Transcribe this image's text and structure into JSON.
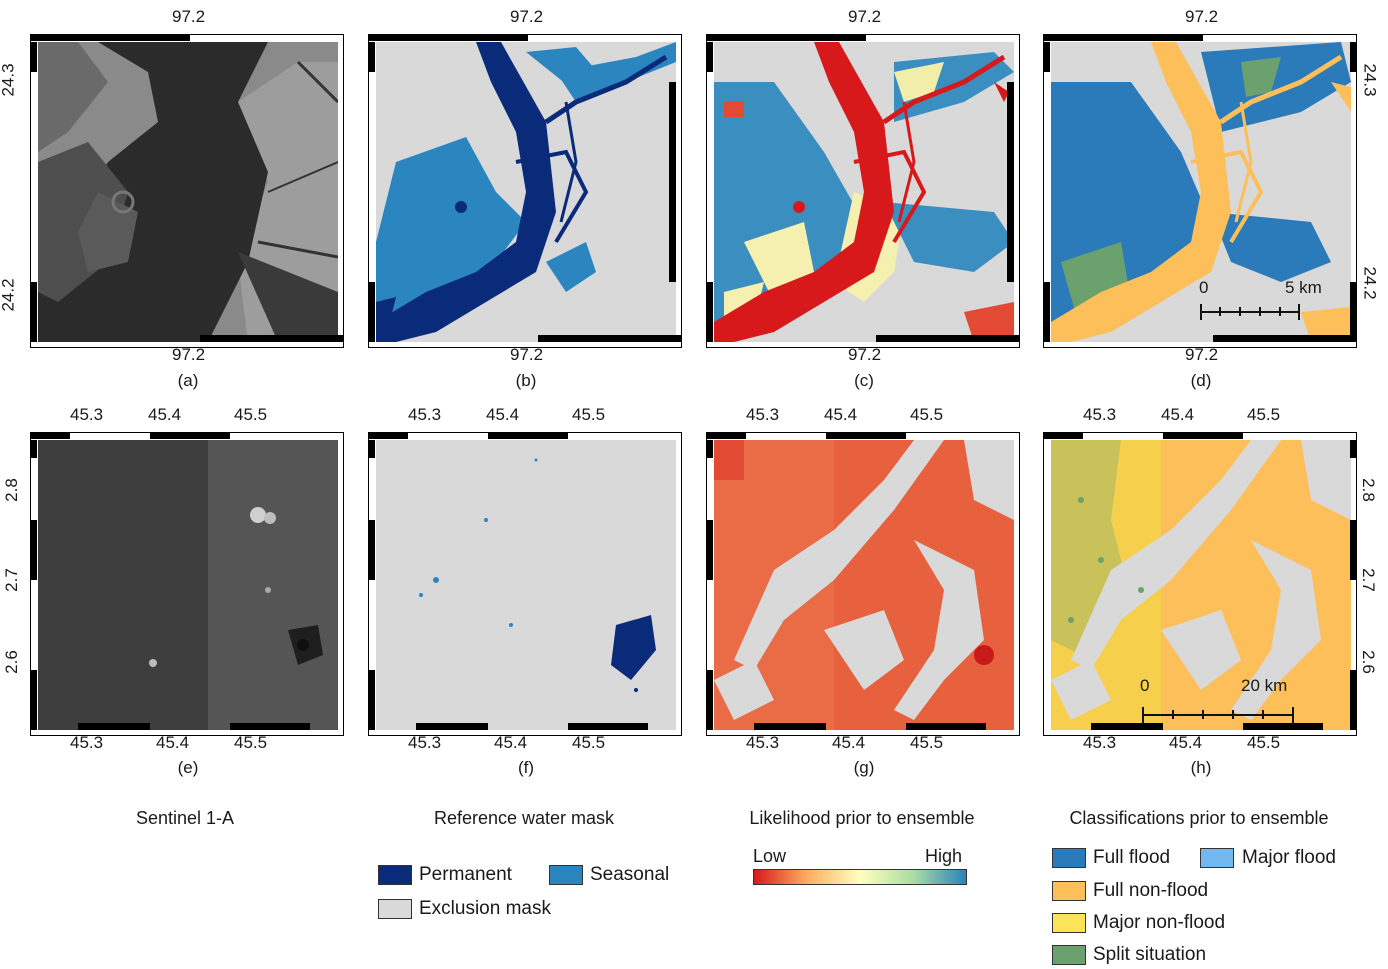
{
  "panels": {
    "a": {
      "label": "(a)",
      "top_tick": "97.2",
      "bottom_tick": "97.2",
      "left_ticks": [
        "24.3",
        "24.2"
      ]
    },
    "b": {
      "label": "(b)",
      "top_tick": "97.2",
      "bottom_tick": "97.2"
    },
    "c": {
      "label": "(c)",
      "top_tick": "97.2",
      "bottom_tick": "97.2"
    },
    "d": {
      "label": "(d)",
      "top_tick": "97.2",
      "bottom_tick": "97.2",
      "right_ticks": [
        "24.3",
        "24.2"
      ],
      "scale": {
        "start": "0",
        "end": "5 km"
      }
    },
    "e": {
      "label": "(e)",
      "top_ticks": [
        "45.3",
        "45.4",
        "45.5"
      ],
      "bottom_ticks": [
        "45.3",
        "45.4",
        "45.5"
      ],
      "left_ticks": [
        "2.8",
        "2.7",
        "2.6"
      ]
    },
    "f": {
      "label": "(f)",
      "top_ticks": [
        "45.3",
        "45.4",
        "45.5"
      ],
      "bottom_ticks": [
        "45.3",
        "45.4",
        "45.5"
      ]
    },
    "g": {
      "label": "(g)",
      "top_ticks": [
        "45.3",
        "45.4",
        "45.5"
      ],
      "bottom_ticks": [
        "45.3",
        "45.4",
        "45.5"
      ]
    },
    "h": {
      "label": "(h)",
      "top_ticks": [
        "45.3",
        "45.4",
        "45.5"
      ],
      "bottom_ticks": [
        "45.3",
        "45.4",
        "45.5"
      ],
      "right_ticks": [
        "2.8",
        "2.7",
        "2.6"
      ],
      "scale": {
        "start": "0",
        "end": "20 km"
      }
    }
  },
  "columns": {
    "c1": "Sentinel 1-A",
    "c2": "Reference water mask",
    "c3": "Likelihood prior to ensemble",
    "c4": "Classifications prior to ensemble"
  },
  "legend_water": {
    "permanent": {
      "label": "Permanent",
      "color": "#0a2a7a"
    },
    "seasonal": {
      "label": "Seasonal",
      "color": "#2b86bf"
    },
    "exclusion": {
      "label": "Exclusion mask",
      "color": "#d9d9d9"
    }
  },
  "legend_likelihood": {
    "low": "Low",
    "high": "High",
    "colors": [
      "#d7191c",
      "#fdae61",
      "#ffffbf",
      "#abdda4",
      "#2b83ba"
    ]
  },
  "legend_class": {
    "full_flood": {
      "label": "Full flood",
      "color": "#2b7bba"
    },
    "major_flood": {
      "label": "Major flood",
      "color": "#74b8f0"
    },
    "full_nonflood": {
      "label": "Full non-flood",
      "color": "#fdbf5a"
    },
    "major_nonflood": {
      "label": "Major non-flood",
      "color": "#fde35a"
    },
    "split": {
      "label": "Split situation",
      "color": "#6aa16d"
    }
  }
}
